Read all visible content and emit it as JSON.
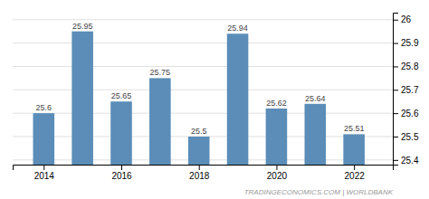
{
  "chart_data": {
    "type": "bar",
    "x": [
      2014,
      2015,
      2016,
      2017,
      2018,
      2019,
      2020,
      2021,
      2022
    ],
    "values": [
      25.6,
      25.95,
      25.65,
      25.75,
      25.5,
      25.94,
      25.62,
      25.64,
      25.51
    ],
    "color": "#5b8db8",
    "xlim": [
      2013.2,
      2023.0
    ],
    "xticks": [
      2014,
      2016,
      2018,
      2020,
      2022
    ],
    "ylim": [
      25.38,
      26.03
    ],
    "yticks": [
      25.4,
      25.5,
      25.6,
      25.7,
      25.8,
      25.9,
      26.0
    ],
    "grid": true,
    "data_labels": true,
    "annotation": "TRADINGECONOMICS.COM | WORLDBANK"
  }
}
